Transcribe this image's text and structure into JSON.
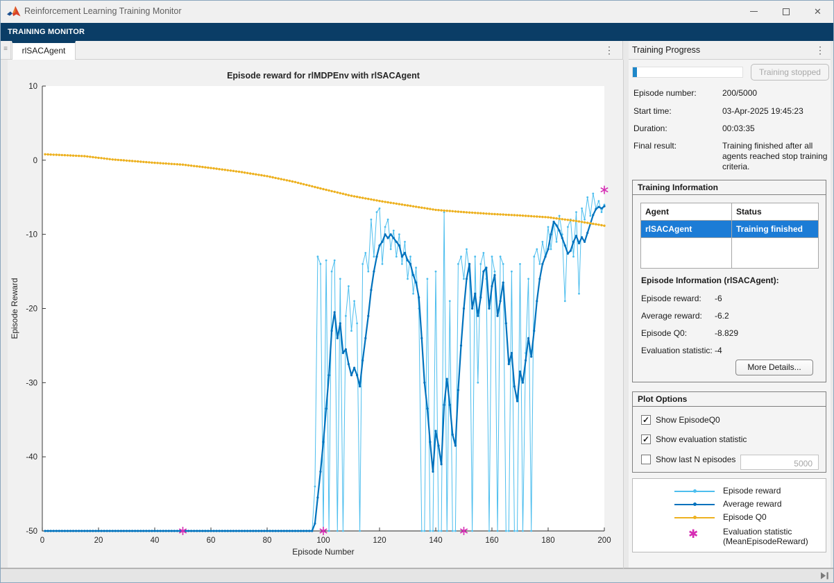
{
  "window": {
    "title": "Reinforcement Learning Training Monitor",
    "controls": {
      "minimize": "minimize",
      "maximize": "maximize",
      "close": "close"
    }
  },
  "ribbon": {
    "label": "TRAINING MONITOR"
  },
  "tabs": {
    "active_tab": "rlSACAgent"
  },
  "right_panel": {
    "title": "Training Progress",
    "progress": {
      "percent": 4,
      "button_label": "Training stopped"
    },
    "fields": [
      {
        "label": "Episode number:",
        "value": "200/5000"
      },
      {
        "label": "Start time:",
        "value": "03-Apr-2025 19:45:23"
      },
      {
        "label": "Duration:",
        "value": "00:03:35"
      },
      {
        "label": "Final result:",
        "value": "Training finished after all agents reached stop training criteria."
      }
    ],
    "training_information": {
      "title": "Training Information",
      "table": {
        "headers": [
          "Agent",
          "Status"
        ],
        "rows": [
          {
            "agent": "rlSACAgent",
            "status": "Training finished",
            "selected": true
          }
        ]
      },
      "episode_info_title": "Episode Information (rlSACAgent):",
      "stats": [
        {
          "label": "Episode reward:",
          "value": "-6"
        },
        {
          "label": "Average reward:",
          "value": "-6.2"
        },
        {
          "label": "Episode Q0:",
          "value": "-8.829"
        },
        {
          "label": "Evaluation statistic:",
          "value": "-4"
        }
      ],
      "more_details_button": "More Details..."
    },
    "plot_options": {
      "title": "Plot Options",
      "checkboxes": [
        {
          "label": "Show EpisodeQ0",
          "checked": true
        },
        {
          "label": "Show evaluation statistic",
          "checked": true
        },
        {
          "label": "Show last N episodes",
          "checked": false
        }
      ],
      "n_episodes_value": "5000"
    },
    "legend": {
      "entries": [
        {
          "label": "Episode reward",
          "color": "#4DBEEE",
          "type": "line"
        },
        {
          "label": "Average reward",
          "color": "#0072BD",
          "type": "line"
        },
        {
          "label": "Episode Q0",
          "color": "#EDB120",
          "type": "line"
        },
        {
          "label": "Evaluation statistic\n(MeanEpisodeReward)",
          "color": "#D62DB4",
          "type": "asterisk"
        }
      ]
    }
  },
  "chart_data": {
    "type": "line",
    "title": "Episode reward for rlMDPEnv with rlSACAgent",
    "xlabel": "Episode Number",
    "ylabel": "Episode Reward",
    "xlim": [
      0,
      200
    ],
    "ylim": [
      -50,
      10
    ],
    "xticks": [
      0,
      20,
      40,
      60,
      80,
      100,
      120,
      140,
      160,
      180,
      200
    ],
    "yticks": [
      10,
      0,
      -10,
      -20,
      -30,
      -40,
      -50
    ],
    "grid": false,
    "legend_position": "right-panel",
    "series": [
      {
        "name": "Episode reward",
        "color": "#4DBEEE",
        "style": "line+marker",
        "line_width": 1,
        "x_start": 1,
        "values": [
          -50,
          -50,
          -50,
          -50,
          -50,
          -50,
          -50,
          -50,
          -50,
          -50,
          -50,
          -50,
          -50,
          -50,
          -50,
          -50,
          -50,
          -50,
          -50,
          -50,
          -50,
          -50,
          -50,
          -50,
          -50,
          -50,
          -50,
          -50,
          -50,
          -50,
          -50,
          -50,
          -50,
          -50,
          -50,
          -50,
          -50,
          -50,
          -50,
          -50,
          -50,
          -50,
          -50,
          -50,
          -50,
          -50,
          -50,
          -50,
          -50,
          -50,
          -50,
          -50,
          -50,
          -50,
          -50,
          -50,
          -50,
          -50,
          -50,
          -50,
          -50,
          -50,
          -50,
          -50,
          -50,
          -50,
          -50,
          -50,
          -50,
          -50,
          -50,
          -50,
          -50,
          -50,
          -50,
          -50,
          -50,
          -50,
          -50,
          -50,
          -50,
          -50,
          -50,
          -50,
          -50,
          -50,
          -50,
          -50,
          -50,
          -50,
          -50,
          -50,
          -50,
          -50,
          -50,
          -50,
          -44,
          -13,
          -14,
          -50,
          -13.5,
          -50,
          -15,
          -13.5,
          -50,
          -16,
          -50,
          -21,
          -17,
          -23,
          -19,
          -22,
          -50,
          -14,
          -12.5,
          -15,
          -8,
          -13,
          -7,
          -6.5,
          -14,
          -9,
          -8,
          -12,
          -9.5,
          -13,
          -10,
          -14,
          -11,
          -16,
          -13,
          -18,
          -14.5,
          -20,
          -50,
          -50,
          -16,
          -50,
          -50,
          -15,
          -50,
          -50,
          -7,
          -50,
          -19,
          -50,
          -50,
          -14,
          -13,
          -16,
          -12,
          -15,
          -50,
          -13,
          -30,
          -14,
          -12.5,
          -16,
          -50,
          -13,
          -15,
          -50,
          -13,
          -14,
          -50,
          -50,
          -15,
          -50,
          -50,
          -14,
          -50,
          -26,
          -16,
          -50,
          -13,
          -12,
          -14,
          -11,
          -13,
          -9,
          -12,
          -8.5,
          -11,
          -7.5,
          -10,
          -19,
          -9,
          -8,
          -13,
          -7,
          -18,
          -6.5,
          -8,
          -5,
          -7.5,
          -4.5,
          -6.5,
          -5.5,
          -7,
          -6
        ]
      },
      {
        "name": "Average reward",
        "color": "#0072BD",
        "style": "line+marker",
        "line_width": 2.2,
        "x_start": 1,
        "values": [
          -50,
          -50,
          -50,
          -50,
          -50,
          -50,
          -50,
          -50,
          -50,
          -50,
          -50,
          -50,
          -50,
          -50,
          -50,
          -50,
          -50,
          -50,
          -50,
          -50,
          -50,
          -50,
          -50,
          -50,
          -50,
          -50,
          -50,
          -50,
          -50,
          -50,
          -50,
          -50,
          -50,
          -50,
          -50,
          -50,
          -50,
          -50,
          -50,
          -50,
          -50,
          -50,
          -50,
          -50,
          -50,
          -50,
          -50,
          -50,
          -50,
          -50,
          -50,
          -50,
          -50,
          -50,
          -50,
          -50,
          -50,
          -50,
          -50,
          -50,
          -50,
          -50,
          -50,
          -50,
          -50,
          -50,
          -50,
          -50,
          -50,
          -50,
          -50,
          -50,
          -50,
          -50,
          -50,
          -50,
          -50,
          -50,
          -50,
          -50,
          -50,
          -50,
          -50,
          -50,
          -50,
          -50,
          -50,
          -50,
          -50,
          -50,
          -50,
          -50,
          -50,
          -50,
          -50,
          -50,
          -49,
          -45.5,
          -42,
          -38,
          -33.5,
          -29,
          -23,
          -20.5,
          -24,
          -22,
          -26,
          -25.5,
          -27.5,
          -29,
          -28,
          -29,
          -30.5,
          -27,
          -24,
          -21,
          -17.5,
          -15,
          -13,
          -11.5,
          -11,
          -10,
          -10.5,
          -10,
          -10.5,
          -11,
          -11.5,
          -13,
          -12.5,
          -13.5,
          -14,
          -15.5,
          -16.5,
          -18.5,
          -24,
          -30,
          -33.5,
          -38,
          -42,
          -36.5,
          -38.5,
          -41,
          -33,
          -29.5,
          -33,
          -37,
          -38.5,
          -31,
          -25,
          -20,
          -16,
          -14,
          -20,
          -18,
          -21,
          -18.5,
          -15,
          -14.5,
          -20,
          -17,
          -15.5,
          -21,
          -19,
          -16.5,
          -22,
          -27.5,
          -26,
          -30.5,
          -32.5,
          -28.5,
          -30,
          -27,
          -24,
          -26.5,
          -23,
          -19,
          -16,
          -14,
          -13,
          -12,
          -10,
          -8.3,
          -8.8,
          -9.5,
          -10.5,
          -11.5,
          -12.6,
          -12.2,
          -11,
          -10.2,
          -11.2,
          -10.4,
          -11,
          -9.8,
          -8.6,
          -7.4,
          -6.6,
          -6.3,
          -6.5,
          -6.2
        ]
      },
      {
        "name": "Episode Q0",
        "color": "#EDB120",
        "style": "line+marker",
        "line_width": 1.2,
        "marker_every_episode": true,
        "anchors": [
          [
            1,
            0.8
          ],
          [
            15,
            0.55
          ],
          [
            25,
            0.1
          ],
          [
            40,
            -0.35
          ],
          [
            50,
            -0.6
          ],
          [
            60,
            -1.05
          ],
          [
            70,
            -1.55
          ],
          [
            80,
            -2.15
          ],
          [
            90,
            -2.95
          ],
          [
            100,
            -3.9
          ],
          [
            110,
            -4.8
          ],
          [
            120,
            -5.5
          ],
          [
            130,
            -6.1
          ],
          [
            140,
            -6.7
          ],
          [
            150,
            -7.0
          ],
          [
            160,
            -7.25
          ],
          [
            170,
            -7.45
          ],
          [
            180,
            -7.7
          ],
          [
            190,
            -8.2
          ],
          [
            200,
            -8.829
          ]
        ]
      },
      {
        "name": "Evaluation statistic (MeanEpisodeReward)",
        "color": "#D62DB4",
        "style": "asterisk",
        "points": [
          [
            50,
            -50
          ],
          [
            100,
            -50
          ],
          [
            150,
            -50
          ],
          [
            200,
            -4
          ]
        ]
      }
    ]
  },
  "icons": {
    "matlab_logo": "matlab-logo",
    "grip": "≡",
    "kebab": "⋮",
    "check": "✓",
    "asterisk": "✱"
  }
}
